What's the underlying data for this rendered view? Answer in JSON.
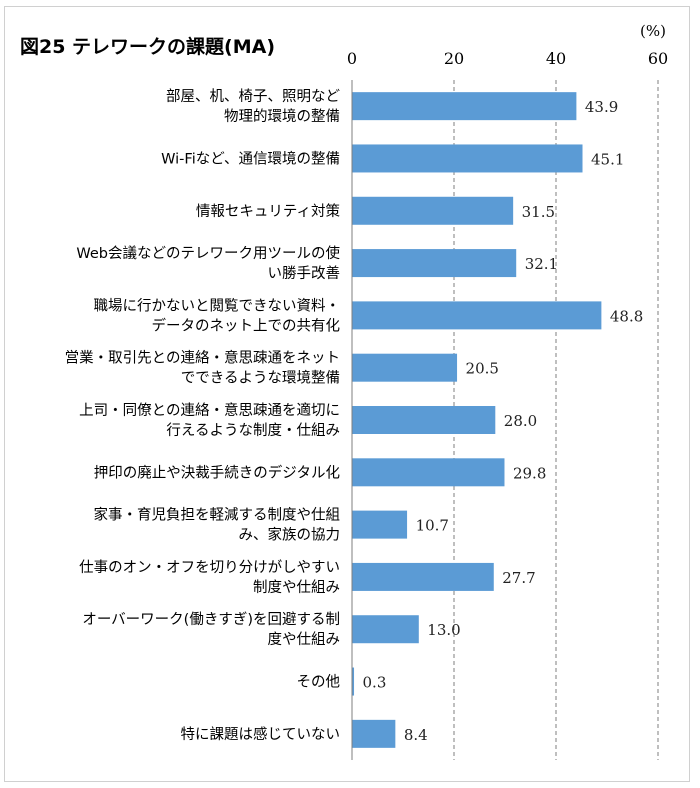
{
  "header": {
    "title": "図25 テレワークの課題(MA)",
    "unit": "(%)"
  },
  "colors": {
    "bar": "#5B9BD5",
    "grid": "#7f7f7f",
    "axis": "#7f7f7f"
  },
  "chart_data": {
    "type": "bar",
    "orientation": "horizontal",
    "title": "図25 テレワークの課題(MA)",
    "xlim": [
      0,
      60
    ],
    "ticks": [
      0,
      20,
      40,
      60
    ],
    "tick_labels": [
      "0",
      "20",
      "40",
      "60"
    ],
    "grid": "vertical dashed",
    "categories": [
      [
        "部屋、机、椅子、照明など",
        "物理的環境の整備"
      ],
      [
        "Wi-Fiなど、通信環境の整備"
      ],
      [
        "情報セキュリティ対策"
      ],
      [
        "Web会議などのテレワーク用ツールの使",
        "い勝手改善"
      ],
      [
        "職場に行かないと閲覧できない資料・",
        "データのネット上での共有化"
      ],
      [
        "営業・取引先との連絡・意思疎通をネット",
        "でできるような環境整備"
      ],
      [
        "上司・同僚との連絡・意思疎通を適切に",
        "行えるような制度・仕組み"
      ],
      [
        "押印の廃止や決裁手続きのデジタル化"
      ],
      [
        "家事・育児負担を軽減する制度や仕組",
        "み、家族の協力"
      ],
      [
        "仕事のオン・オフを切り分けがしやすい",
        "制度や仕組み"
      ],
      [
        "オーバーワーク(働きすぎ)を回避する制",
        "度や仕組み"
      ],
      [
        "その他"
      ],
      [
        "特に課題は感じていない"
      ]
    ],
    "values": [
      43.9,
      45.1,
      31.5,
      32.1,
      48.8,
      20.5,
      28.0,
      29.8,
      10.7,
      27.7,
      13.0,
      0.3,
      8.4
    ],
    "value_labels": [
      "43.9",
      "45.1",
      "31.5",
      "32.1",
      "48.8",
      "20.5",
      "28.0",
      "29.8",
      "10.7",
      "27.7",
      "13.0",
      "0.3",
      "8.4"
    ]
  }
}
